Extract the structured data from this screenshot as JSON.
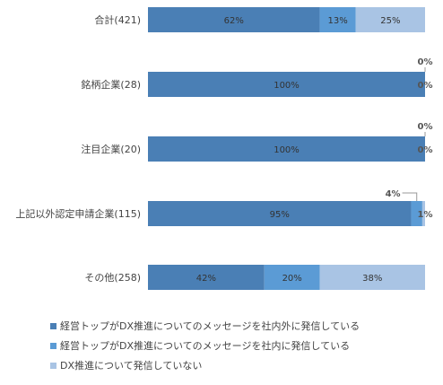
{
  "chart_data": {
    "type": "bar",
    "orientation": "horizontal",
    "stacked": true,
    "categories": [
      "合計(421)",
      "銘柄企業(28)",
      "注目企業(20)",
      "上記以外認定申請企業(115)",
      "その他(258)"
    ],
    "series": [
      {
        "name": "経営トップがDX推進についてのメッセージを社内外に発信している",
        "values": [
          62,
          100,
          100,
          95,
          42
        ],
        "color": "#4a7fb5"
      },
      {
        "name": "経営トップがDX推進についてのメッセージを社内に発信している",
        "values": [
          13,
          0,
          0,
          4,
          20
        ],
        "color": "#5b9bd5"
      },
      {
        "name": "DX推進について発信していない",
        "values": [
          25,
          0,
          0,
          1,
          38
        ],
        "color": "#a9c4e4"
      }
    ],
    "data_labels": [
      [
        "62%",
        "100%",
        "100%",
        "95%",
        "42%"
      ],
      [
        "13%",
        "0%",
        "0%",
        "4%",
        "20%"
      ],
      [
        "25%",
        "0%",
        "0%",
        "1%",
        "38%"
      ]
    ],
    "xlim": [
      0,
      100
    ],
    "legend_position": "bottom",
    "grid": false
  }
}
